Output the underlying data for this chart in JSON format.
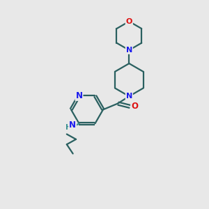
{
  "bg_color": "#e8e8e8",
  "atom_color_N": "#1a1aee",
  "atom_color_O": "#dd1111",
  "atom_color_H": "#3a9090",
  "bond_color": "#2a6060",
  "line_width": 1.6,
  "fig_size": [
    3.0,
    3.0
  ],
  "dpi": 100,
  "xlim": [
    0,
    10
  ],
  "ylim": [
    0,
    10
  ]
}
